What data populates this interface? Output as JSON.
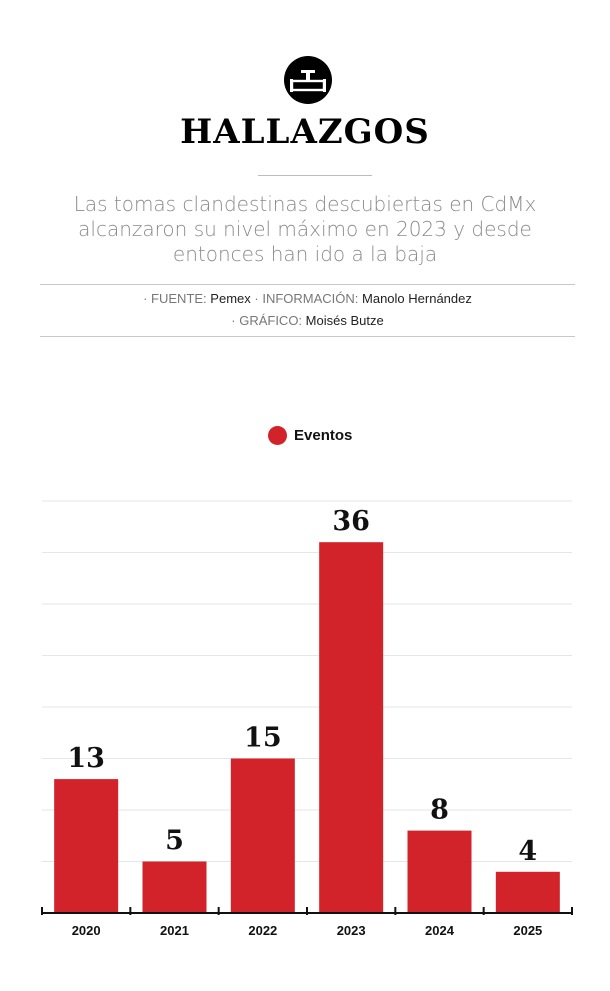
{
  "header": {
    "icon": "pipeline-valve-icon",
    "title": "HALLAZGOS",
    "subtitle": "Las tomas clandestinas descubiertas en CdMx alcanzaron su nivel máximo en 2023 y desde entonces han ido a la baja"
  },
  "credits": {
    "source_label": "· FUENTE:",
    "source": "Pemex",
    "info_label": "· INFORMACIÓN:",
    "info": "Manolo Hernández",
    "graphic_label": "· GRÁFICO:",
    "graphic": "Moisés Butze"
  },
  "colors": {
    "bar": "#d2232a",
    "grid": "#e6e6e6",
    "axis": "#111111"
  },
  "chart_data": {
    "type": "bar",
    "title": "",
    "xlabel": "",
    "ylabel": "",
    "categories": [
      "2020",
      "2021",
      "2022",
      "2023",
      "2024",
      "2025"
    ],
    "series": [
      {
        "name": "Eventos",
        "values": [
          13,
          5,
          15,
          36,
          8,
          4
        ]
      }
    ],
    "ylim": [
      0,
      40
    ],
    "grid": true,
    "legend_position": "top-center"
  }
}
